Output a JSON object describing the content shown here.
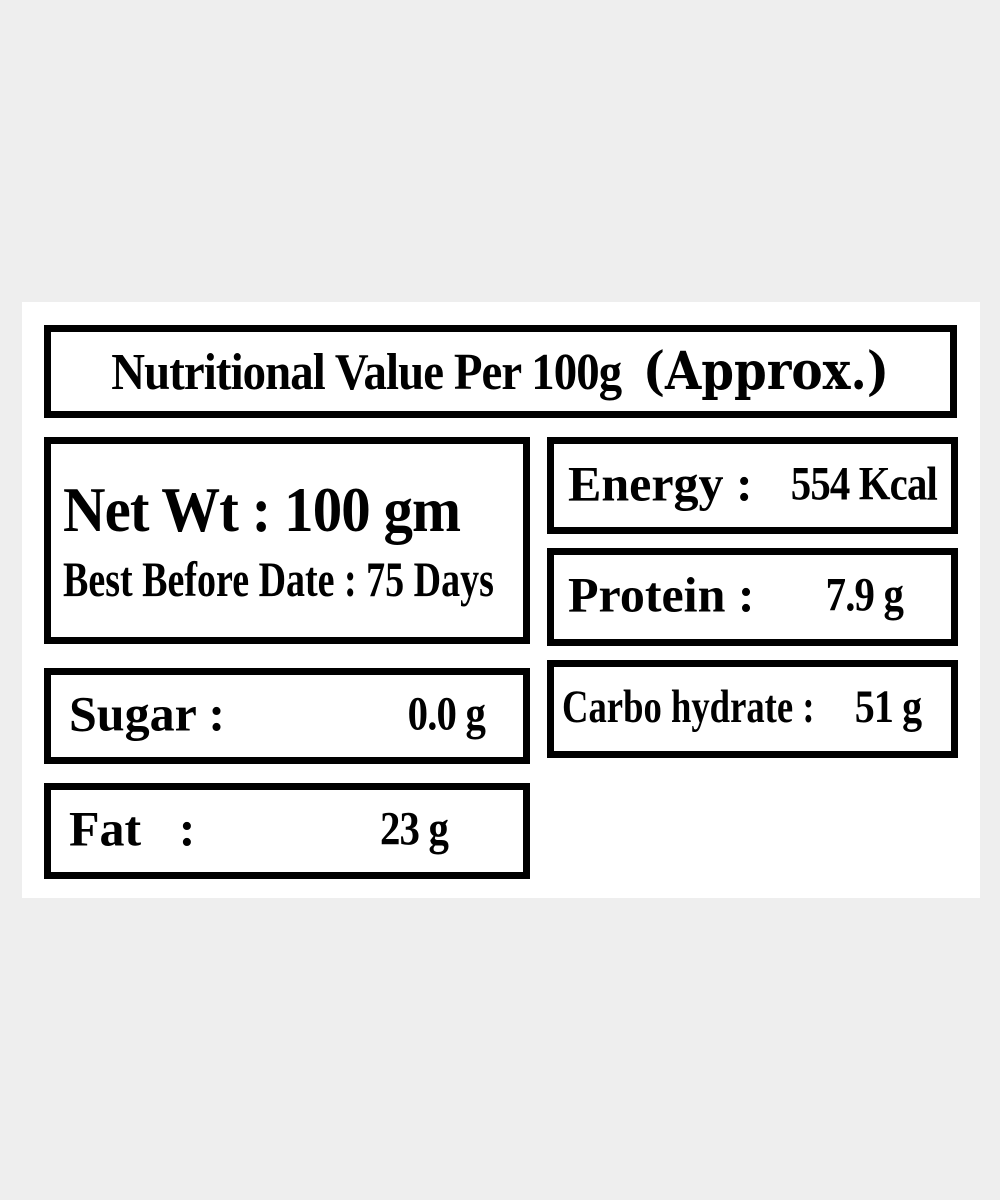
{
  "colors": {
    "page_background": "#eeeeee",
    "card_background": "#ffffff",
    "box_border": "#000000",
    "text": "#000000"
  },
  "title": {
    "main": "Nutritional Value Per 100g",
    "approx": "(Approx.)"
  },
  "net_weight": {
    "net_wt_line": "Net Wt : 100 gm",
    "best_before_line": "Best Before Date : 75 Days"
  },
  "nutrients": {
    "sugar": {
      "label": "Sugar :",
      "value": "0.0 g"
    },
    "fat": {
      "label": "Fat   :",
      "value": "23 g"
    },
    "energy": {
      "label": "Energy :",
      "value": "554 Kcal"
    },
    "protein": {
      "label": "Protein :",
      "value": "7.9 g"
    },
    "carbohydrate": {
      "label": "Carbo hydrate :",
      "value": "51 g"
    }
  }
}
